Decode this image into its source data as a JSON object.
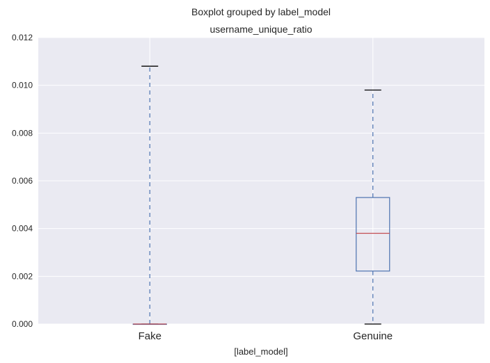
{
  "chart_data": {
    "type": "box",
    "suptitle": "Boxplot grouped by label_model",
    "title": "username_unique_ratio",
    "xlabel": "[label_model]",
    "ylabel": "",
    "ylim": [
      0.0,
      0.012
    ],
    "yticks": [
      "0.000",
      "0.002",
      "0.004",
      "0.006",
      "0.008",
      "0.010",
      "0.012"
    ],
    "ytick_values": [
      0.0,
      0.002,
      0.004,
      0.006,
      0.008,
      0.01,
      0.012
    ],
    "categories": [
      "Fake",
      "Genuine"
    ],
    "boxes": [
      {
        "name": "Fake",
        "whislo": 0.0,
        "q1": 0.0,
        "med": 0.0,
        "q3": 0.0,
        "whishi": 0.0108
      },
      {
        "name": "Genuine",
        "whislo": 0.0,
        "q1": 0.00222,
        "med": 0.0038,
        "q3": 0.0053,
        "whishi": 0.0098
      }
    ],
    "grid": true,
    "colors": {
      "background": "#EAEAF2",
      "grid": "#FFFFFF",
      "box": "#4C72B0",
      "median": "#C44E52",
      "cap": "#000000",
      "whisker": "#4C72B0"
    }
  }
}
